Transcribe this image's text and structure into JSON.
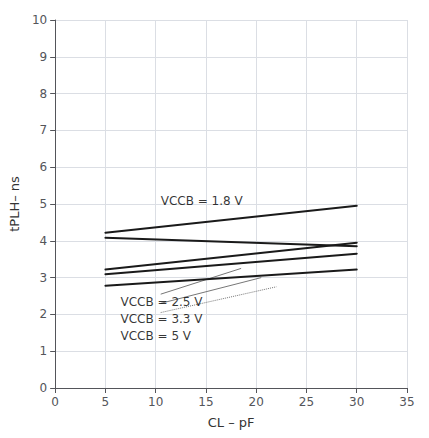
{
  "chart_data": {
    "type": "line",
    "xlabel": "CL – pF",
    "ylabel": "tPLH– ns",
    "xlim": [
      0,
      35
    ],
    "ylim": [
      0,
      10
    ],
    "xticks": [
      0,
      5,
      10,
      15,
      20,
      25,
      30,
      35
    ],
    "yticks": [
      0,
      1,
      2,
      3,
      4,
      5,
      6,
      7,
      8,
      9,
      10
    ],
    "grid": true,
    "series": [
      {
        "x": [
          5,
          30
        ],
        "values": [
          4.22,
          4.95
        ],
        "color": "#1a1a1a",
        "line_style": "solid"
      },
      {
        "x": [
          5,
          30
        ],
        "values": [
          4.08,
          3.85
        ],
        "color": "#1a1a1a",
        "line_style": "solid"
      },
      {
        "x": [
          5,
          30
        ],
        "values": [
          3.22,
          3.95
        ],
        "color": "#1a1a1a",
        "line_style": "solid"
      },
      {
        "x": [
          5,
          30
        ],
        "values": [
          3.09,
          3.65
        ],
        "color": "#1a1a1a",
        "line_style": "solid"
      },
      {
        "x": [
          5,
          30
        ],
        "values": [
          2.78,
          3.22
        ],
        "color": "#1a1a1a",
        "line_style": "solid"
      }
    ],
    "annotation_lines": [
      {
        "x": [
          10.5,
          18.5
        ],
        "values": [
          2.55,
          3.25
        ],
        "color": "#777777",
        "line_style": "solid"
      },
      {
        "x": [
          10.5,
          20.5
        ],
        "values": [
          2.3,
          3.0
        ],
        "color": "#777777",
        "line_style": "solid"
      },
      {
        "x": [
          10.5,
          22.0
        ],
        "values": [
          2.05,
          2.75
        ],
        "color": "#777777",
        "line_style": "dotted"
      }
    ],
    "annotations": [
      {
        "text": "VCCB = 1.8 V",
        "x": 10.5,
        "y": 5.08
      },
      {
        "text": "VCCB = 2.5 V",
        "x": 6.5,
        "y": 2.35
      },
      {
        "text": "VCCB = 3.3 V",
        "x": 6.5,
        "y": 1.88
      },
      {
        "text": "VCCB = 5 V",
        "x": 6.5,
        "y": 1.41
      }
    ]
  }
}
